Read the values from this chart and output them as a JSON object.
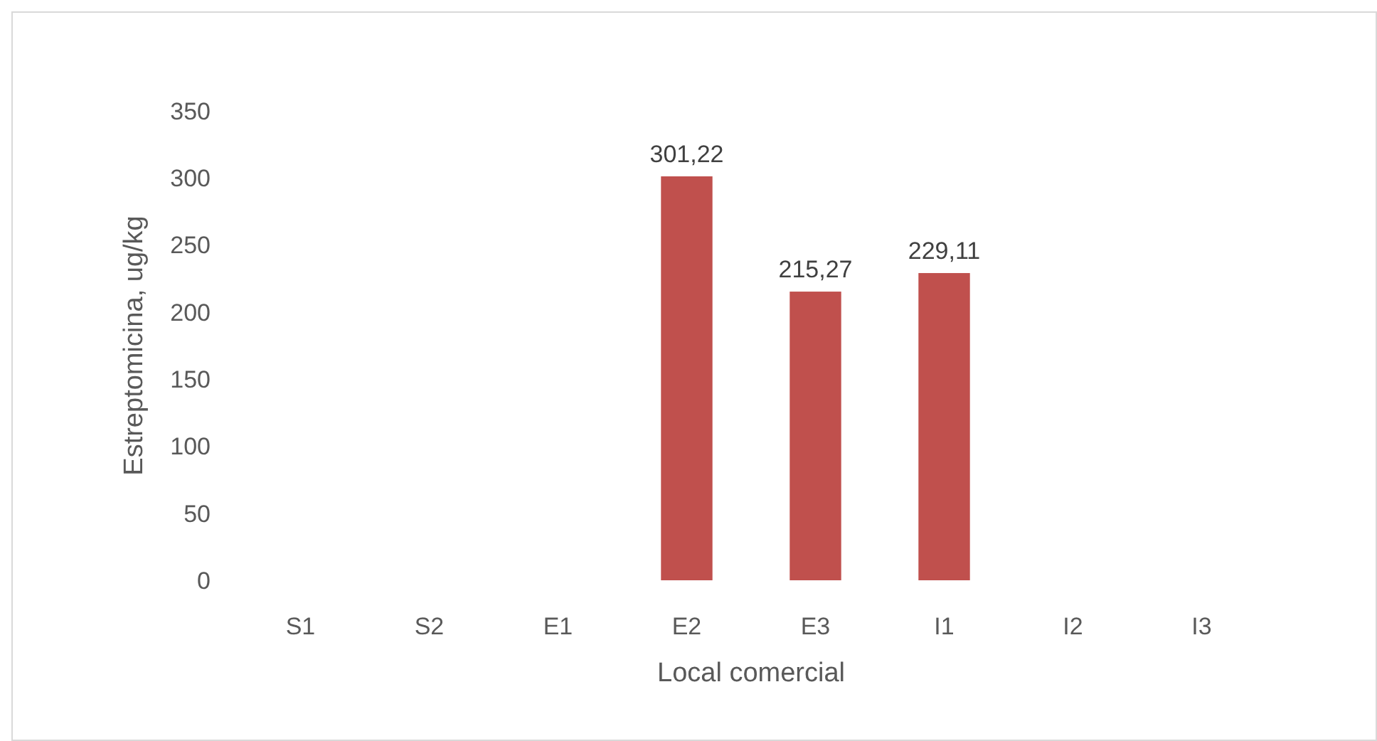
{
  "chart_data": {
    "type": "bar",
    "xlabel": "Local comercial",
    "ylabel": "Estreptomicina, ug/kg",
    "categories": [
      "S1",
      "S2",
      "E1",
      "E2",
      "E3",
      "I1",
      "I2",
      "I3"
    ],
    "values": [
      null,
      null,
      null,
      301.22,
      215.27,
      229.11,
      null,
      null
    ],
    "value_labels": [
      null,
      null,
      null,
      "301,22",
      "215,27",
      "229,11",
      null,
      null
    ],
    "color": "#c0504d",
    "ylim": [
      0,
      350
    ],
    "yticks": [
      0,
      50,
      100,
      150,
      200,
      250,
      300,
      350
    ]
  }
}
